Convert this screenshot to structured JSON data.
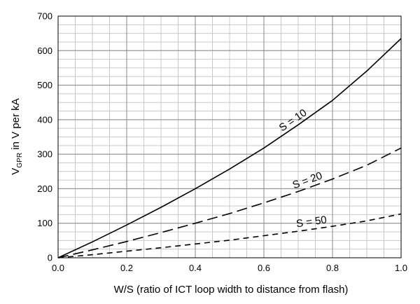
{
  "chart_data": {
    "type": "line",
    "title": "",
    "xlabel": "W/S (ratio of ICT loop width to distance from flash)",
    "ylabel_main": "V",
    "ylabel_sub": "GPR",
    "ylabel_rest": " in V per kA",
    "xlim": [
      0,
      1
    ],
    "ylim": [
      0,
      700
    ],
    "x_major_ticks": [
      0,
      0.2,
      0.4,
      0.6,
      0.8,
      1
    ],
    "x_tick_labels": [
      "0.0",
      "0.2",
      "0.4",
      "0.6",
      "0.8",
      "1.0"
    ],
    "y_major_ticks": [
      0,
      100,
      200,
      300,
      400,
      500,
      600,
      700
    ],
    "y_tick_labels": [
      "0",
      "100",
      "200",
      "300",
      "400",
      "500",
      "600",
      "700"
    ],
    "x_minor_step": 0.05,
    "y_minor_step": 25,
    "grid": true,
    "x": [
      0,
      0.1,
      0.2,
      0.3,
      0.4,
      0.5,
      0.6,
      0.7,
      0.8,
      0.9,
      1.0
    ],
    "series": [
      {
        "name": "S = 10",
        "style": "solid",
        "values": [
          0,
          46,
          95,
          146,
          200,
          257,
          318,
          385,
          456,
          541,
          635
        ]
      },
      {
        "name": "S = 20",
        "style": "long-dash",
        "values": [
          0,
          23,
          47,
          73,
          100,
          128,
          159,
          192,
          228,
          268,
          318
        ]
      },
      {
        "name": "S = 50",
        "style": "short-dash",
        "values": [
          0,
          9,
          19,
          29,
          40,
          51,
          64,
          77,
          91,
          107,
          127
        ]
      }
    ]
  }
}
